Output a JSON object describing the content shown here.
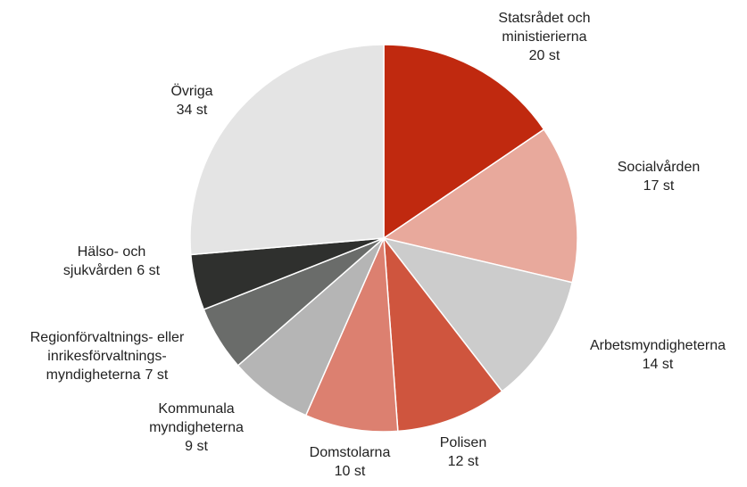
{
  "chart_data": {
    "type": "pie",
    "categories": [
      "Statsrådet och ministierierna",
      "Socialvården",
      "Arbetsmyndigheterna",
      "Polisen",
      "Domstolarna",
      "Kommunala myndigheterna",
      "Regionförvaltnings- eller inrikesförvaltnings-myndigheterna",
      "Hälso- och sjukvården",
      "Övriga"
    ],
    "values": [
      20,
      17,
      14,
      12,
      10,
      9,
      7,
      6,
      34
    ],
    "value_labels": [
      "20 st",
      "17 st",
      "14 st",
      "12 st",
      "10 st",
      "9 st",
      "7 st",
      "6 st",
      "34 st"
    ],
    "colors": [
      "#c0290f",
      "#e8a99c",
      "#cccccc",
      "#cf553e",
      "#dc8070",
      "#b5b5b5",
      "#6a6c6a",
      "#2f302e",
      "#e4e4e4"
    ]
  }
}
